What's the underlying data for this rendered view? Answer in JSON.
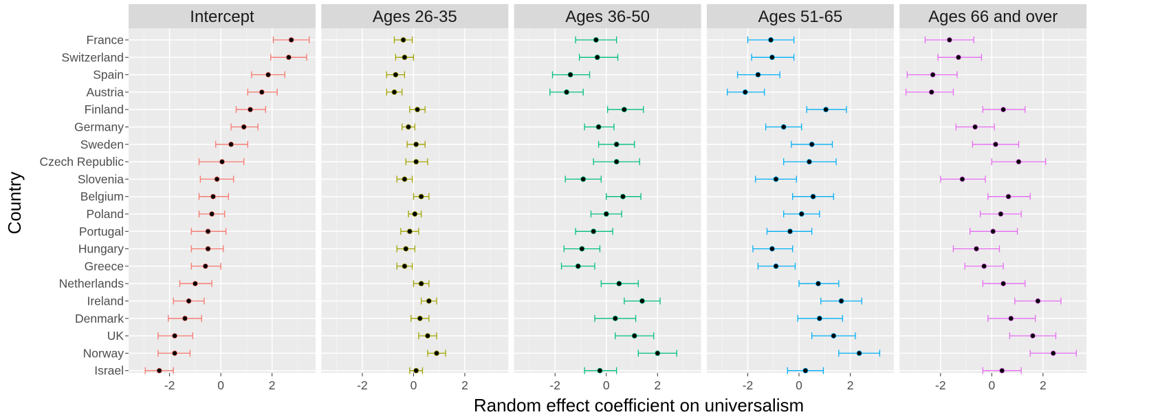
{
  "chart_data": {
    "type": "scatter",
    "xlabel": "Random effect coefficient on universalism",
    "ylabel": "Country",
    "xlim": [
      -3.6,
      3.7
    ],
    "x_ticks": [
      -2,
      0,
      2
    ],
    "grid": true,
    "countries": [
      "France",
      "Switzerland",
      "Spain",
      "Austria",
      "Finland",
      "Germany",
      "Sweden",
      "Czech Republic",
      "Slovenia",
      "Belgium",
      "Poland",
      "Portugal",
      "Hungary",
      "Greece",
      "Netherlands",
      "Ireland",
      "Denmark",
      "UK",
      "Norway",
      "Israel"
    ],
    "panels": [
      {
        "title": "Intercept",
        "color": "#F8766D",
        "estimate": [
          2.75,
          2.65,
          1.85,
          1.6,
          1.15,
          0.9,
          0.4,
          0.05,
          -0.15,
          -0.3,
          -0.35,
          -0.5,
          -0.5,
          -0.6,
          -1.0,
          -1.25,
          -1.4,
          -1.8,
          -1.8,
          -2.4
        ],
        "lower": [
          2.05,
          1.95,
          1.2,
          1.05,
          0.6,
          0.4,
          -0.2,
          -0.85,
          -0.8,
          -0.85,
          -0.85,
          -1.15,
          -1.15,
          -1.15,
          -1.6,
          -1.85,
          -2.05,
          -2.45,
          -2.45,
          -2.95
        ],
        "upper": [
          3.45,
          3.35,
          2.5,
          2.2,
          1.75,
          1.45,
          1.05,
          0.9,
          0.5,
          0.3,
          0.15,
          0.2,
          0.1,
          0.0,
          -0.35,
          -0.65,
          -0.75,
          -1.1,
          -1.2,
          -1.85
        ]
      },
      {
        "title": "Ages 26-35",
        "color": "#A3A500",
        "estimate": [
          -0.4,
          -0.35,
          -0.7,
          -0.75,
          0.15,
          -0.2,
          0.1,
          0.1,
          -0.35,
          0.3,
          0.05,
          -0.15,
          -0.3,
          -0.35,
          0.3,
          0.6,
          0.25,
          0.55,
          0.9,
          0.1
        ],
        "lower": [
          -0.75,
          -0.7,
          -1.05,
          -1.05,
          -0.15,
          -0.45,
          -0.25,
          -0.3,
          -0.65,
          0.0,
          -0.2,
          -0.5,
          -0.65,
          -0.65,
          0.0,
          0.3,
          -0.1,
          0.2,
          0.55,
          -0.15
        ],
        "upper": [
          -0.05,
          0.0,
          -0.35,
          -0.45,
          0.45,
          0.05,
          0.45,
          0.55,
          -0.05,
          0.6,
          0.3,
          0.2,
          0.05,
          -0.05,
          0.6,
          0.9,
          0.6,
          0.9,
          1.25,
          0.35
        ]
      },
      {
        "title": "Ages 36-50",
        "color": "#00BF7D",
        "estimate": [
          -0.4,
          -0.35,
          -1.4,
          -1.55,
          0.7,
          -0.3,
          0.4,
          0.4,
          -0.9,
          0.65,
          0.0,
          -0.5,
          -0.95,
          -1.1,
          0.5,
          1.4,
          0.35,
          1.1,
          2.0,
          -0.25
        ],
        "lower": [
          -1.2,
          -1.05,
          -2.1,
          -2.2,
          0.05,
          -0.85,
          -0.3,
          -0.5,
          -1.6,
          0.0,
          -0.6,
          -1.2,
          -1.65,
          -1.75,
          -0.2,
          0.7,
          -0.45,
          0.35,
          1.25,
          -0.85
        ],
        "upper": [
          0.4,
          0.45,
          -0.65,
          -0.9,
          1.45,
          0.3,
          1.1,
          1.3,
          -0.2,
          1.35,
          0.6,
          0.25,
          -0.25,
          -0.45,
          1.25,
          2.1,
          1.15,
          1.85,
          2.75,
          0.4
        ]
      },
      {
        "title": "Ages 51-65",
        "color": "#00B0F6",
        "estimate": [
          -1.1,
          -1.05,
          -1.6,
          -2.1,
          1.05,
          -0.6,
          0.5,
          0.4,
          -0.9,
          0.55,
          0.1,
          -0.35,
          -1.05,
          -0.9,
          0.75,
          1.65,
          0.8,
          1.35,
          2.35,
          0.25
        ],
        "lower": [
          -2.0,
          -1.85,
          -2.4,
          -2.8,
          0.3,
          -1.3,
          -0.3,
          -0.6,
          -1.7,
          -0.25,
          -0.6,
          -1.25,
          -1.8,
          -1.6,
          0.0,
          0.85,
          -0.05,
          0.5,
          1.55,
          -0.45
        ],
        "upper": [
          -0.2,
          -0.2,
          -0.75,
          -1.35,
          1.85,
          0.1,
          1.3,
          1.45,
          -0.1,
          1.35,
          0.8,
          0.5,
          -0.25,
          -0.15,
          1.55,
          2.45,
          1.7,
          2.2,
          3.15,
          0.95
        ]
      },
      {
        "title": "Ages 66 and over",
        "color": "#E76BF3",
        "estimate": [
          -1.65,
          -1.3,
          -2.3,
          -2.35,
          0.45,
          -0.65,
          0.15,
          1.05,
          -1.15,
          0.65,
          0.35,
          0.05,
          -0.6,
          -0.3,
          0.45,
          1.8,
          0.75,
          1.6,
          2.4,
          0.4
        ],
        "lower": [
          -2.6,
          -2.1,
          -3.3,
          -3.35,
          -0.35,
          -1.4,
          -0.75,
          0.0,
          -2.0,
          -0.15,
          -0.45,
          -0.85,
          -1.5,
          -1.05,
          -0.35,
          0.9,
          -0.15,
          0.7,
          1.5,
          -0.35
        ],
        "upper": [
          -0.7,
          -0.4,
          -1.35,
          -1.5,
          1.3,
          0.1,
          1.05,
          2.1,
          -0.25,
          1.5,
          1.15,
          1.0,
          0.3,
          0.45,
          1.3,
          2.7,
          1.7,
          2.5,
          3.3,
          1.15
        ]
      }
    ]
  }
}
